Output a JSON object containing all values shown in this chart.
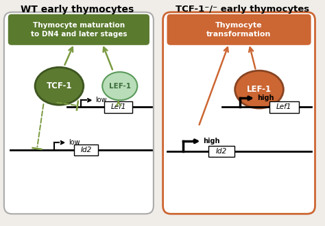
{
  "title_left": "WT early thymocytes",
  "title_right": "TCF-1⁻/⁻ early thymocytes",
  "box_left_label": "Thymocyte maturation\nto DN4 and later stages",
  "box_right_label": "Thymocyte\ntransformation",
  "box_left_color": "#5a7a2e",
  "box_right_color": "#cc6633",
  "circle_tcf1_fc": "#5c7a30",
  "circle_tcf1_ec": "#3d5520",
  "circle_lef1_left_fc": "#b8ddb8",
  "circle_lef1_left_ec": "#5a9a5a",
  "circle_lef1_right_fc": "#cc6633",
  "circle_lef1_right_ec": "#884422",
  "green_color": "#7a9a40",
  "orange_color": "#cc6633",
  "bg_color": "#f0ede8",
  "panel_border_color": "#aaaaaa",
  "panel_bg": "#ffffff"
}
